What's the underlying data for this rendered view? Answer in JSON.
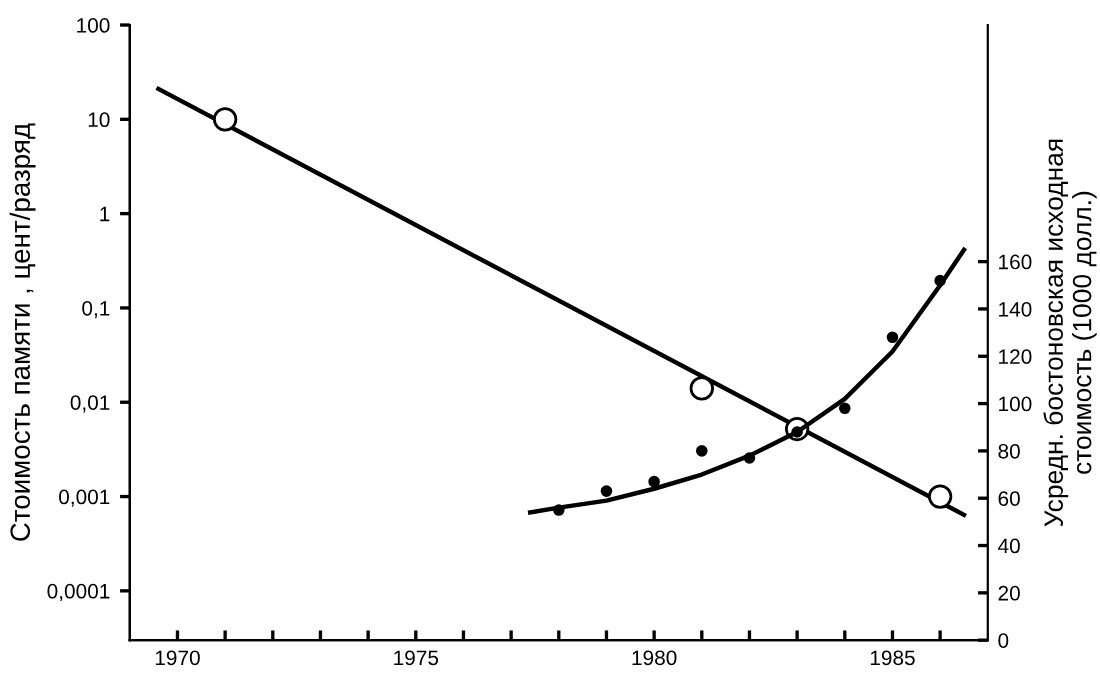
{
  "chart_data": {
    "type": "scatter",
    "ylabel": "Стоимость памяти , цент/разряд",
    "y2label": "Усредн. бостоновская исходная\nстоимость (1000 долл.)",
    "xlim": [
      1969,
      1987
    ],
    "xticks": [
      1970,
      {
        "value": 1971,
        "label": null
      },
      {
        "value": 1972,
        "label": null
      },
      {
        "value": 1973,
        "label": null
      },
      {
        "value": 1974,
        "label": null
      },
      1975,
      {
        "value": 1976,
        "label": null
      },
      {
        "value": 1977,
        "label": null
      },
      {
        "value": 1978,
        "label": null
      },
      {
        "value": 1979,
        "label": null
      },
      1980,
      {
        "value": 1981,
        "label": null
      },
      {
        "value": 1982,
        "label": null
      },
      {
        "value": 1983,
        "label": null
      },
      {
        "value": 1984,
        "label": null
      },
      1985,
      {
        "value": 1986,
        "label": null
      }
    ],
    "log": "y",
    "ylim": [
      3e-05,
      100
    ],
    "yticks": [
      {
        "value": 0.0001,
        "label": "0,0001"
      },
      {
        "value": 0.001,
        "label": "0,001"
      },
      {
        "value": 0.01,
        "label": "0,01"
      },
      {
        "value": 0.1,
        "label": "0,1"
      },
      1,
      10,
      100
    ],
    "y2lim": [
      0,
      260
    ],
    "y2ticks": [
      0,
      20,
      40,
      60,
      80,
      100,
      120,
      140,
      160
    ],
    "grid": false,
    "legend": false,
    "series": [
      {
        "marker": "circle",
        "color": "#000000",
        "x": [
          1971,
          1981,
          1983,
          1986
        ],
        "values": [
          10,
          0.014,
          0.0052,
          0.001
        ]
      },
      {
        "type": "line",
        "marker": "none",
        "line_style": "solid",
        "color": "#000000",
        "x": [
          1969.6,
          1986.5
        ],
        "values": [
          21,
          0.00064
        ]
      },
      {
        "marker": "circle",
        "axis": "y2",
        "color": "#000000",
        "x": [
          1978,
          1979,
          1980,
          1981,
          1982,
          1983,
          1984,
          1985,
          1986
        ],
        "values": [
          55,
          63,
          67,
          80,
          77,
          88,
          98,
          128,
          152
        ]
      },
      {
        "type": "line",
        "marker": "none",
        "line_style": "solid",
        "axis": "y2",
        "color": "#000000",
        "x": [
          1977.4,
          1978,
          1979,
          1980,
          1981,
          1982,
          1983,
          1984,
          1985,
          1986,
          1986.5
        ],
        "values": [
          54,
          56,
          59,
          64,
          70,
          78,
          88,
          102,
          122,
          150,
          165
        ]
      }
    ]
  }
}
